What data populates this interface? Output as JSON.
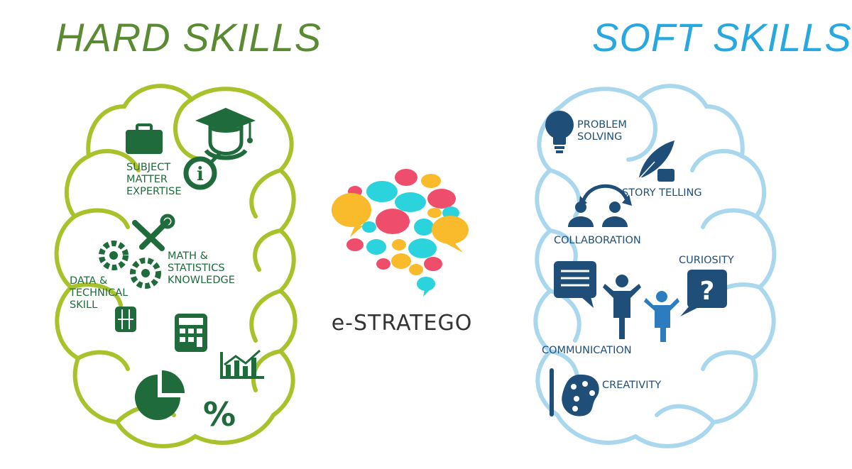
{
  "colors": {
    "hard_title": "#5a8a32",
    "hard_outline": "#a7c22a",
    "hard_icon": "#1f6b3b",
    "soft_title": "#29a8e0",
    "soft_outline": "#a9d8ee",
    "soft_icon": "#1f4f79",
    "logo_yellow": "#f9bb2b",
    "logo_cyan": "#2bd3dd",
    "logo_pink": "#ee4d6b",
    "logo_text": "#333333"
  },
  "hard": {
    "title": "HARD SKILLS",
    "subject_line1": "SUBJECT",
    "subject_line2": "MATTER",
    "subject_line3": "EXPERTISE",
    "math_line1": "MATH &",
    "math_line2": "STATISTICS",
    "math_line3": "KNOWLEDGE",
    "data_line1": "DATA &",
    "data_line2": "TECHNICAL",
    "data_line3": "SKILL",
    "percent": "%",
    "info": "i"
  },
  "soft": {
    "title": "SOFT SKILLS",
    "problem_line1": "PROBLEM",
    "problem_line2": "SOLVING",
    "story": "STORY TELLING",
    "collaboration": "COLLABORATION",
    "curiosity": "CURIOSITY",
    "communication": "COMMUNICATION",
    "creativity": "CREATIVITY",
    "question": "?"
  },
  "logo": {
    "name": "e-STRATEGO"
  }
}
